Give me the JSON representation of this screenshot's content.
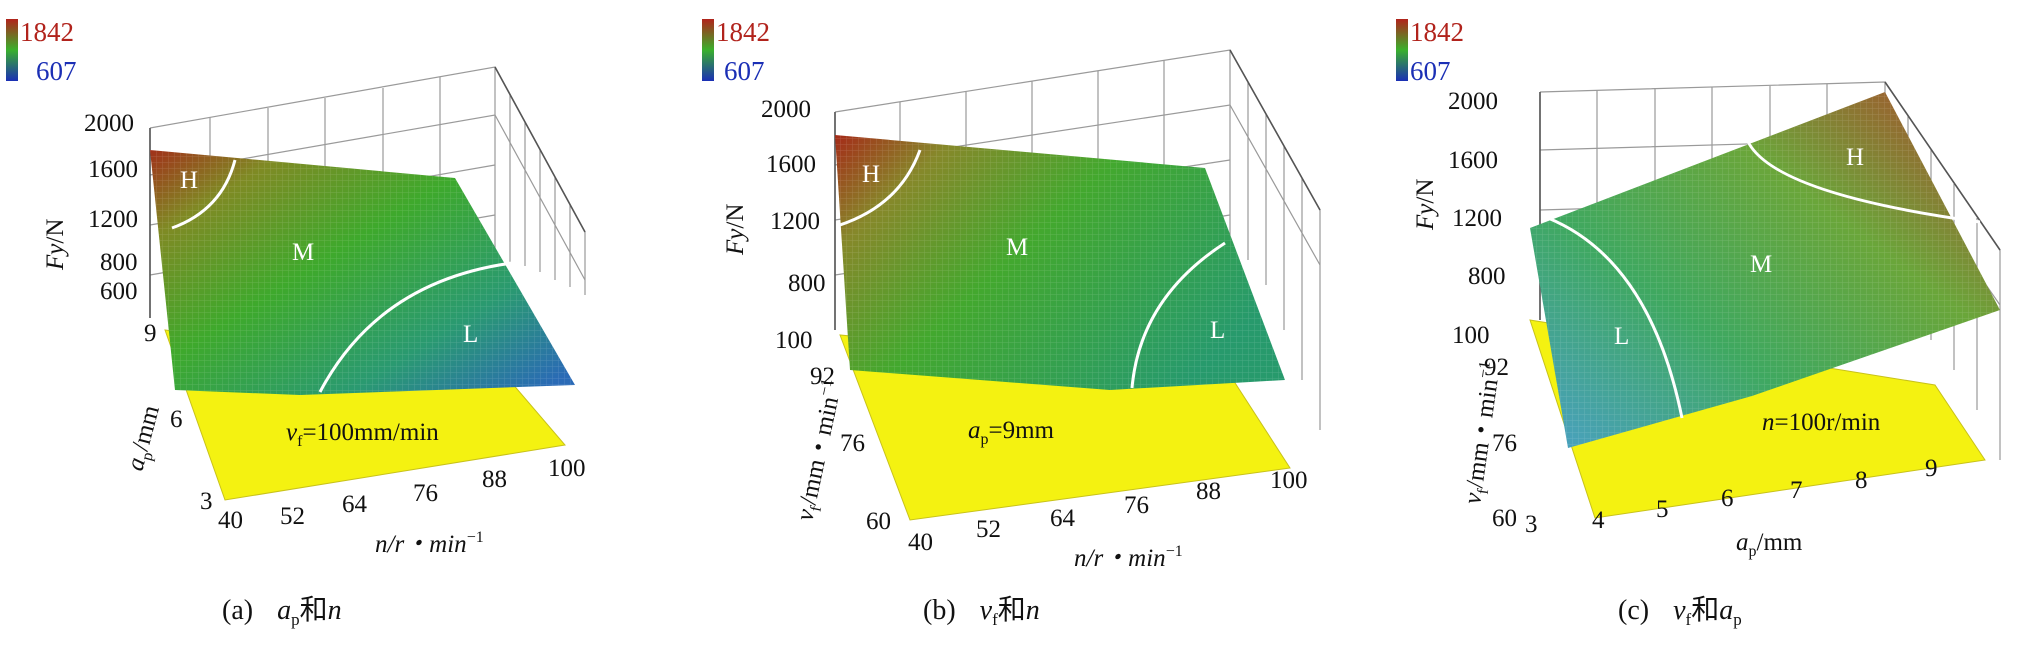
{
  "colorbar": {
    "max_label": "1842",
    "min_label": "607",
    "colors": [
      "#b1231c",
      "#3ab02c",
      "#1b2fb5"
    ]
  },
  "chart_data": [
    {
      "type": "surface",
      "caption": {
        "letter": "(a)",
        "var1": "a",
        "var1_sub": "p",
        "joiner": "和",
        "var2": "n"
      },
      "x_axis": {
        "label": "n/r・min",
        "sup": "−1",
        "ticks": [
          "40",
          "52",
          "64",
          "76",
          "88",
          "100"
        ]
      },
      "y_axis": {
        "label": "a",
        "sub": "p",
        "unit": "/mm",
        "ticks": [
          "3",
          "6",
          "9"
        ]
      },
      "z_axis": {
        "label": "F",
        "sub": "y",
        "unit": "/N",
        "ticks": [
          "600",
          "800",
          "1200",
          "1600",
          "2000"
        ]
      },
      "fixed_parameter": {
        "var": "v",
        "sub": "f",
        "text": "=100mm/min"
      },
      "regions": [
        "H",
        "M",
        "L"
      ]
    },
    {
      "type": "surface",
      "caption": {
        "letter": "(b)",
        "var1": "v",
        "var1_sub": "f",
        "joiner": "和",
        "var2": "n"
      },
      "x_axis": {
        "label": "n/r・min",
        "sup": "−1",
        "ticks": [
          "40",
          "52",
          "64",
          "76",
          "88",
          "100"
        ]
      },
      "y_axis": {
        "label": "v",
        "sub": "f",
        "unit": "/mm・min",
        "sup": "−1",
        "ticks": [
          "60",
          "76",
          "92",
          "100"
        ]
      },
      "z_axis": {
        "label": "F",
        "sub": "y",
        "unit": "/N",
        "ticks": [
          "800",
          "1200",
          "1600",
          "2000"
        ]
      },
      "fixed_parameter": {
        "var": "a",
        "sub": "p",
        "text": "=9mm"
      },
      "regions": [
        "H",
        "M",
        "L"
      ]
    },
    {
      "type": "surface",
      "caption": {
        "letter": "(c)",
        "var1": "v",
        "var1_sub": "f",
        "joiner": "和",
        "var2": "a",
        "var2_sub": "p"
      },
      "x_axis": {
        "label": "a",
        "sub": "p",
        "unit": "/mm",
        "ticks": [
          "3",
          "4",
          "5",
          "6",
          "7",
          "8",
          "9"
        ]
      },
      "y_axis": {
        "label": "v",
        "sub": "f",
        "unit": "/mm・min",
        "sup": "−1",
        "ticks": [
          "60",
          "76",
          "92",
          "100"
        ]
      },
      "z_axis": {
        "label": "F",
        "sub": "y",
        "unit": "/N",
        "ticks": [
          "800",
          "1200",
          "1600",
          "2000"
        ]
      },
      "fixed_parameter": {
        "var": "n",
        "text": "=100r/min"
      },
      "regions": [
        "H",
        "M",
        "L"
      ]
    }
  ]
}
